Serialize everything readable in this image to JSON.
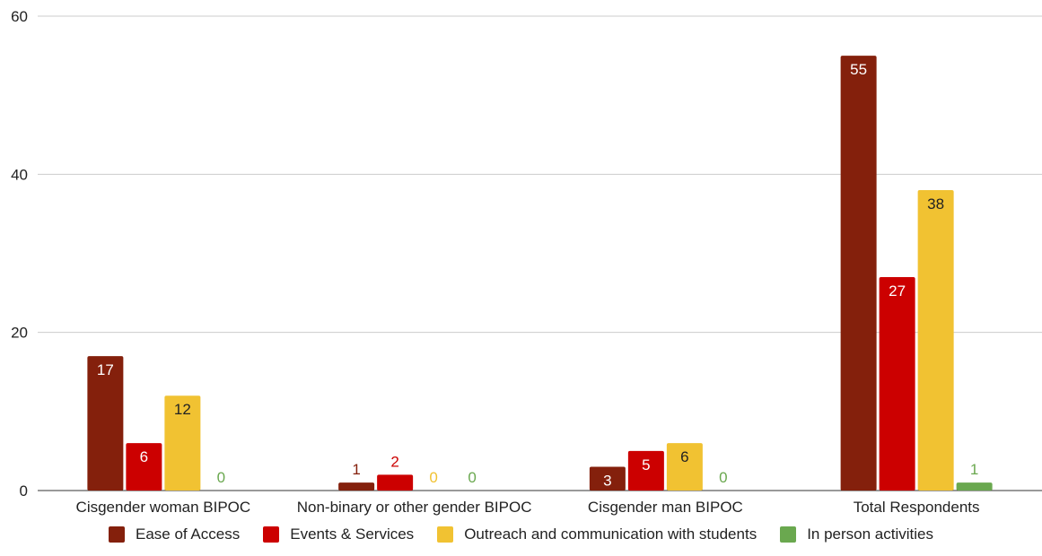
{
  "chart_data": {
    "type": "bar",
    "title": "",
    "xlabel": "",
    "ylabel": "",
    "ylim": [
      0,
      60
    ],
    "yticks": [
      0,
      20,
      40,
      60
    ],
    "grid": true,
    "legend_position": "bottom",
    "categories": [
      "Cisgender woman BIPOC",
      "Non-binary or other gender BIPOC",
      "Cisgender man BIPOC",
      "Total Respondents"
    ],
    "series": [
      {
        "name": "Ease of Access",
        "color": "#84200c",
        "values": [
          17,
          1,
          3,
          55
        ]
      },
      {
        "name": "Events & Services",
        "color": "#cc0000",
        "values": [
          6,
          2,
          5,
          27
        ]
      },
      {
        "name": "Outreach and communication with students",
        "color": "#f1c232",
        "values": [
          12,
          0,
          6,
          38
        ]
      },
      {
        "name": "In person activities",
        "color": "#6aa84f",
        "values": [
          0,
          0,
          0,
          1
        ]
      }
    ]
  }
}
